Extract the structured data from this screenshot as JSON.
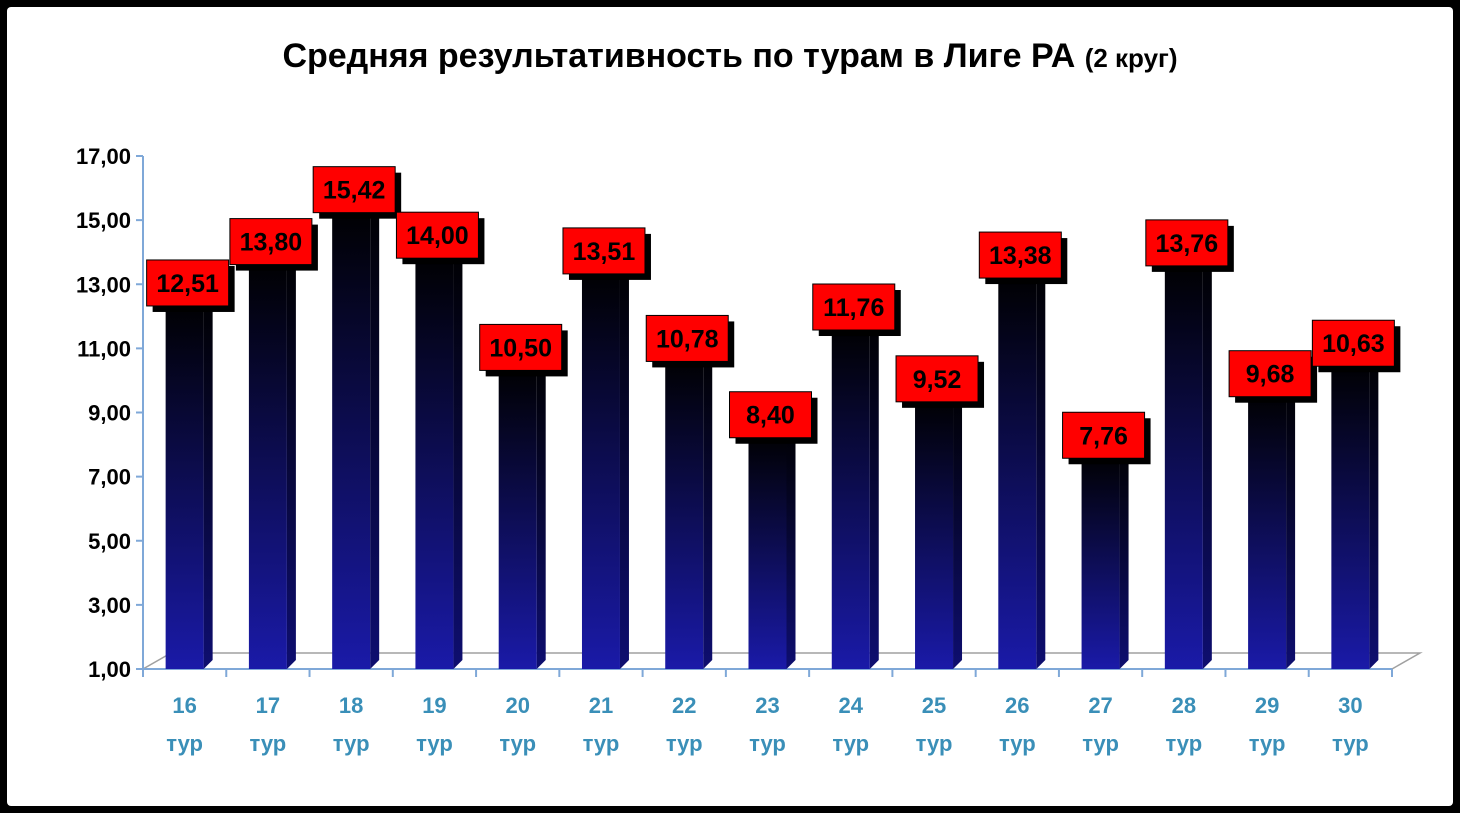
{
  "chart_data": {
    "type": "bar",
    "title": "Средняя результативность по турам в Лиге РА",
    "title_suffix": "(2 круг)",
    "categories": [
      [
        "16",
        "тур"
      ],
      [
        "17",
        "тур"
      ],
      [
        "18",
        "тур"
      ],
      [
        "19",
        "тур"
      ],
      [
        "20",
        "тур"
      ],
      [
        "21",
        "тур"
      ],
      [
        "22",
        "тур"
      ],
      [
        "23",
        "тур"
      ],
      [
        "24",
        "тур"
      ],
      [
        "25",
        "тур"
      ],
      [
        "26",
        "тур"
      ],
      [
        "27",
        "тур"
      ],
      [
        "28",
        "тур"
      ],
      [
        "29",
        "тур"
      ],
      [
        "30",
        "тур"
      ]
    ],
    "values": [
      12.51,
      13.8,
      15.42,
      14.0,
      10.5,
      13.51,
      10.78,
      8.4,
      11.76,
      9.52,
      13.38,
      7.76,
      13.76,
      9.68,
      10.63
    ],
    "value_labels": [
      "12,51",
      "13,80",
      "15,42",
      "14,00",
      "10,50",
      "13,51",
      "10,78",
      "8,40",
      "11,76",
      "9,52",
      "13,38",
      "7,76",
      "13,76",
      "9,68",
      "10,63"
    ],
    "yticks": [
      1,
      3,
      5,
      7,
      9,
      11,
      13,
      15,
      17
    ],
    "ytick_labels": [
      "1,00",
      "3,00",
      "5,00",
      "7,00",
      "9,00",
      "11,00",
      "13,00",
      "15,00",
      "17,00"
    ],
    "ylim": [
      1,
      17
    ],
    "xlabel": "",
    "ylabel": "",
    "grid": false,
    "legend": "none",
    "colors": {
      "bar_top": "#000000",
      "bar_bottom": "#1a1aa8",
      "label_fill": "#ff0000",
      "label_text": "#000000",
      "axis": "#7fa8d8",
      "category_text": "#3a8fb8"
    }
  }
}
